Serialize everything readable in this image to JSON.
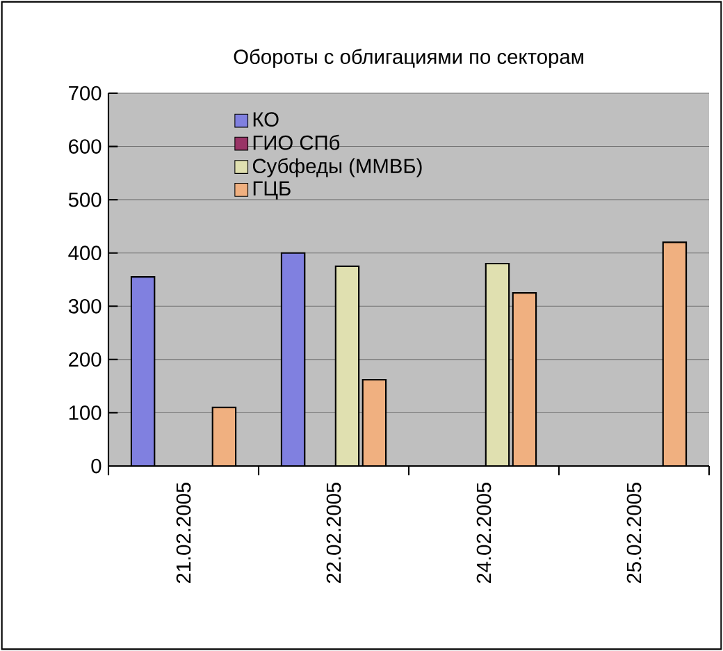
{
  "chart_data": {
    "type": "bar",
    "title": "Обороты с облигациями по секторам",
    "categories": [
      "21.02.2005",
      "22.02.2005",
      "24.02.2005",
      "25.02.2005"
    ],
    "series": [
      {
        "name": "КО",
        "color": "#8080e0",
        "values": [
          355,
          400,
          null,
          null
        ]
      },
      {
        "name": "ГИО СПб",
        "color": "#993366",
        "values": [
          null,
          null,
          null,
          null
        ]
      },
      {
        "name": "Субфеды (ММВБ)",
        "color": "#e0e0b0",
        "values": [
          null,
          375,
          380,
          null
        ]
      },
      {
        "name": "ГЦБ",
        "color": "#f0b080",
        "values": [
          110,
          162,
          325,
          420
        ]
      }
    ],
    "ylim": [
      0,
      700
    ],
    "yticks": [
      0,
      100,
      200,
      300,
      400,
      500,
      600,
      700
    ],
    "grid": "y",
    "legend": "top left"
  }
}
